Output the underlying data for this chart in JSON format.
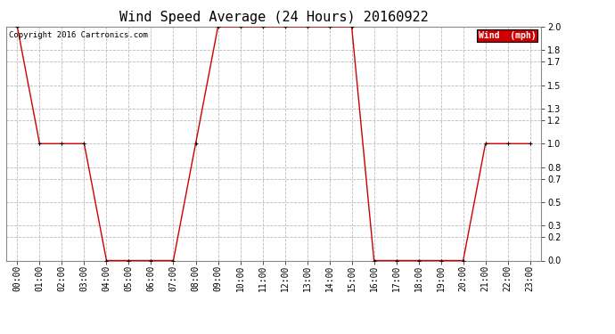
{
  "title": "Wind Speed Average (24 Hours) 20160922",
  "copyright": "Copyright 2016 Cartronics.com",
  "legend_label": "Wind  (mph)",
  "background_color": "#ffffff",
  "plot_bg_color": "#ffffff",
  "line_color": "#cc0000",
  "marker_color": "#000000",
  "x_labels": [
    "00:00",
    "01:00",
    "02:00",
    "03:00",
    "04:00",
    "05:00",
    "06:00",
    "07:00",
    "08:00",
    "09:00",
    "10:00",
    "11:00",
    "12:00",
    "13:00",
    "14:00",
    "15:00",
    "16:00",
    "17:00",
    "18:00",
    "19:00",
    "20:00",
    "21:00",
    "22:00",
    "23:00"
  ],
  "y_values": [
    2.0,
    1.0,
    1.0,
    1.0,
    0.0,
    0.0,
    0.0,
    0.0,
    1.0,
    2.0,
    2.0,
    2.0,
    2.0,
    2.0,
    2.0,
    2.0,
    0.0,
    0.0,
    0.0,
    0.0,
    0.0,
    1.0,
    1.0,
    1.0
  ],
  "ylim": [
    0.0,
    2.0
  ],
  "yticks": [
    0.0,
    0.2,
    0.3,
    0.5,
    0.7,
    0.8,
    1.0,
    1.2,
    1.3,
    1.5,
    1.7,
    1.8,
    2.0
  ],
  "grid_color": "#bbbbbb",
  "legend_bg": "#cc0000",
  "legend_text_color": "#ffffff",
  "title_fontsize": 11,
  "tick_fontsize": 7,
  "copyright_fontsize": 6.5
}
